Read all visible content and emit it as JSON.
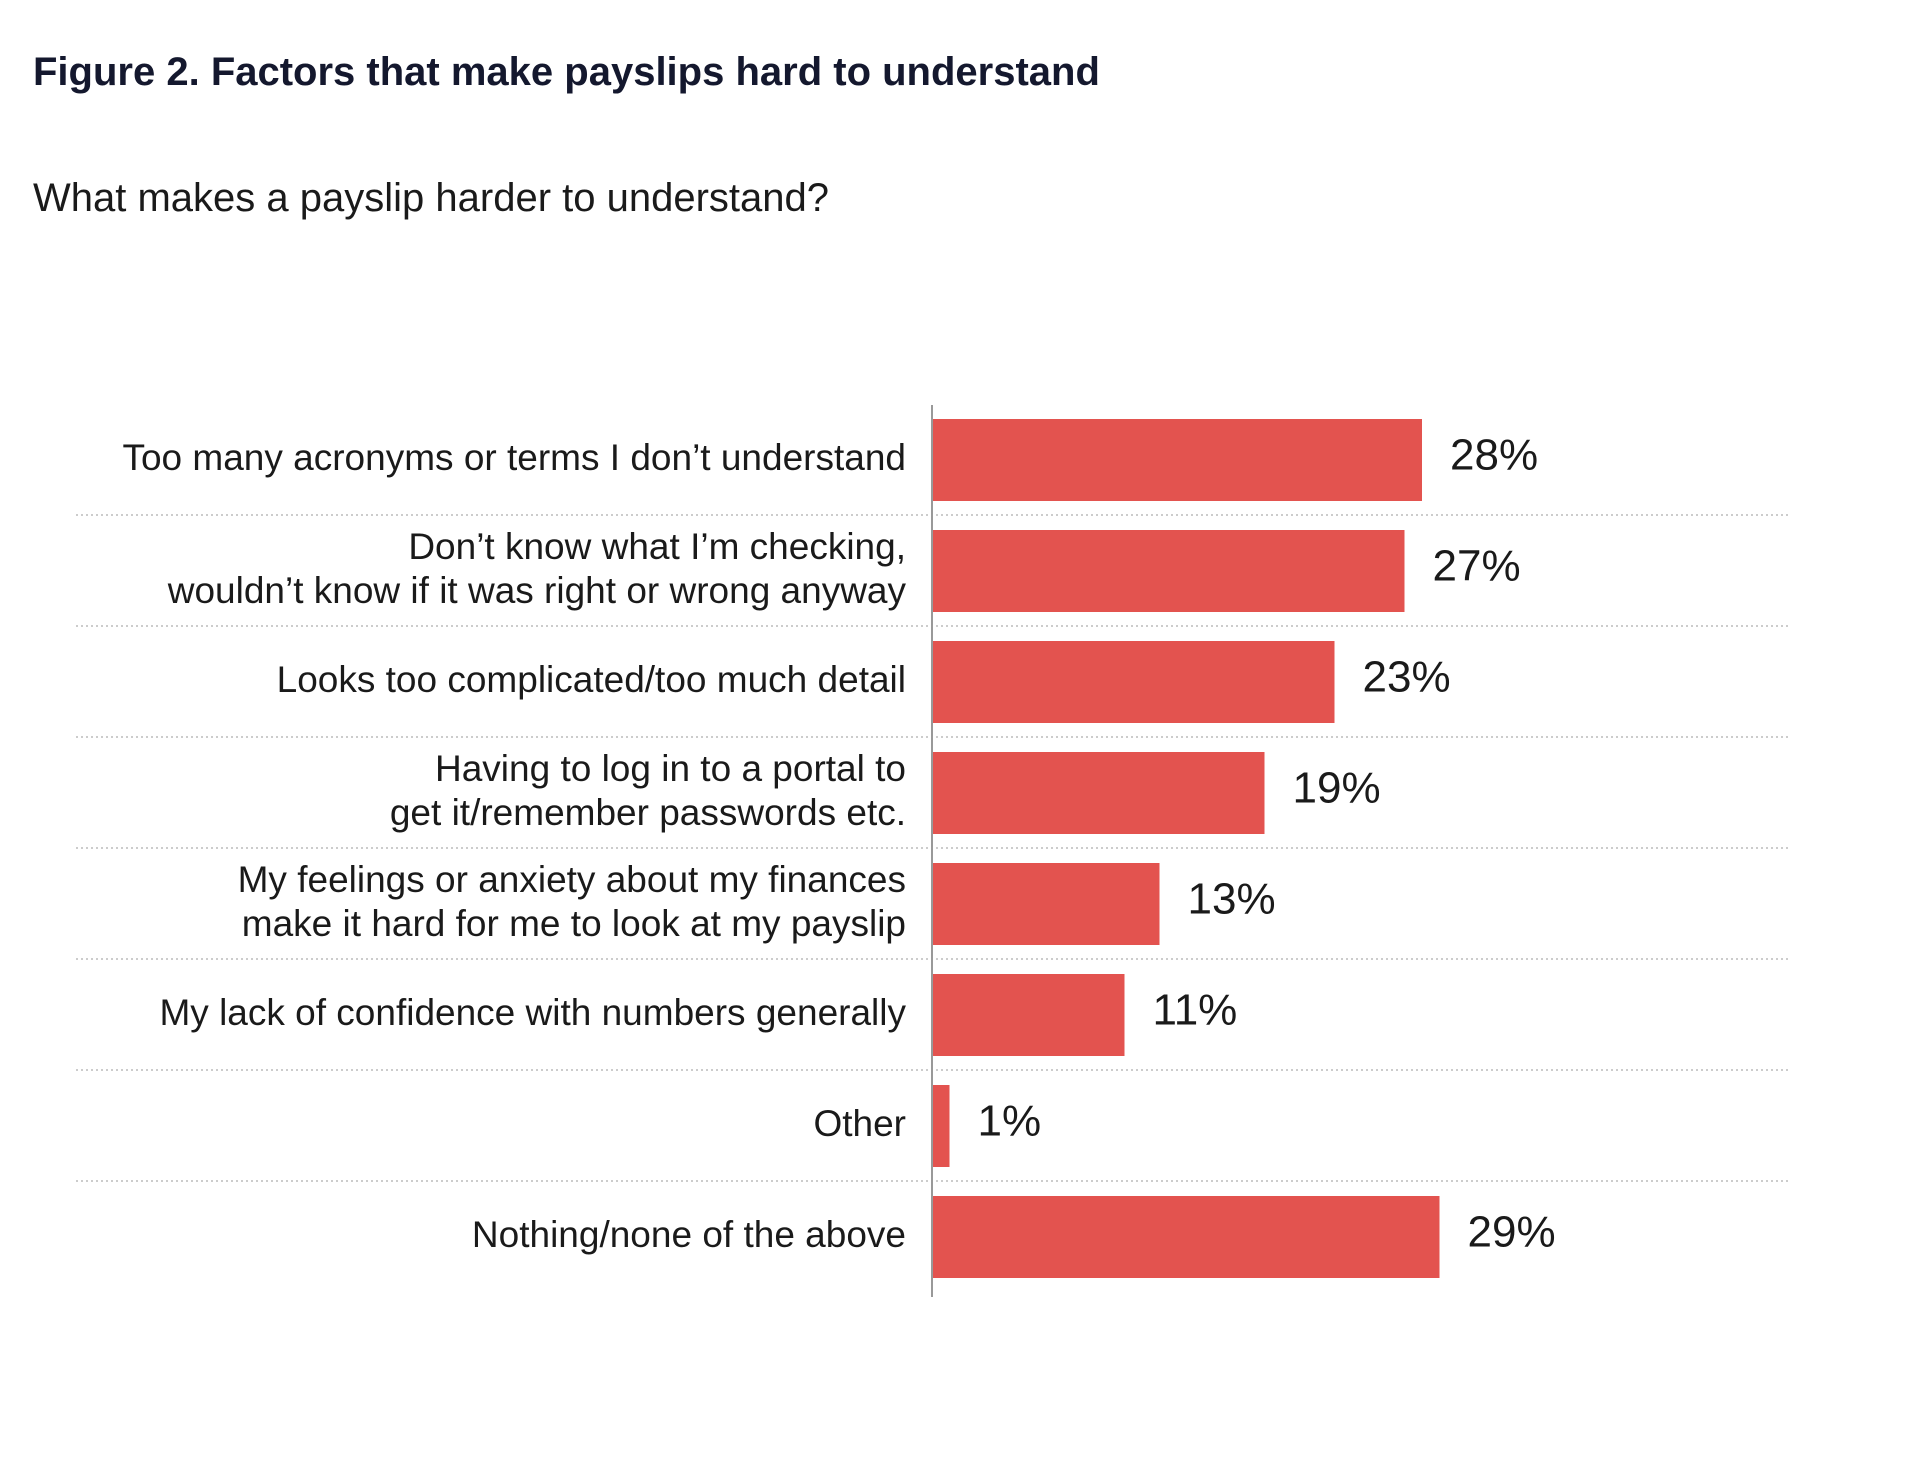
{
  "figure": {
    "title": "Figure 2. Factors that make payslips hard to understand",
    "subtitle": "What makes a payslip harder to understand?"
  },
  "colors": {
    "bar": "#e3534f",
    "axis": "#999999",
    "separator": "#bbbbbb",
    "text": "#1a1a1a",
    "title": "#14182e"
  },
  "chart_data": {
    "type": "bar",
    "orientation": "horizontal",
    "title": "Figure 2. Factors that make payslips hard to understand",
    "subtitle": "What makes a payslip harder to understand?",
    "categories": [
      [
        "Too many acronyms or terms I don’t understand"
      ],
      [
        "Don’t know what I’m checking,",
        "wouldn’t know if it was right or wrong anyway"
      ],
      [
        "Looks too complicated/too much detail"
      ],
      [
        "Having to log in to a portal to",
        "get it/remember passwords etc."
      ],
      [
        "My feelings or anxiety about my finances",
        "make it hard for me to  look at my payslip"
      ],
      [
        "My lack of confidence with numbers generally"
      ],
      [
        "Other"
      ],
      [
        "Nothing/none of the above"
      ]
    ],
    "values": [
      28,
      27,
      23,
      19,
      13,
      11,
      1,
      29
    ],
    "data_labels": [
      "28%",
      "27%",
      "23%",
      "19%",
      "13%",
      "11%",
      "1%",
      "29%"
    ],
    "unit": "%",
    "xlim": [
      0,
      30
    ],
    "grid": false,
    "legend": "none"
  }
}
